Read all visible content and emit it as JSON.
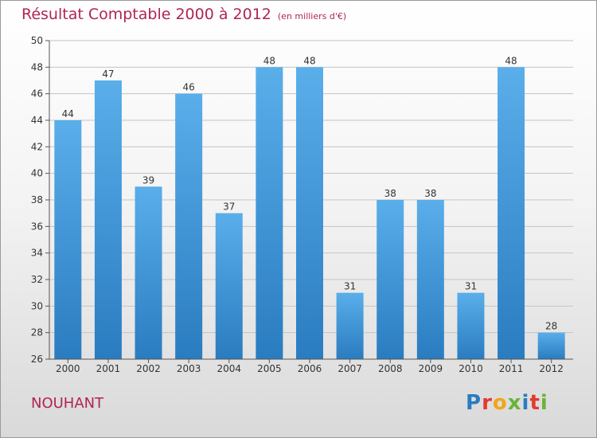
{
  "header": {
    "title": "Résultat Comptable 2000 à 2012",
    "unit": "(en milliers d'€)"
  },
  "footer": {
    "commune": "NOUHANT",
    "logo": "Proxiti"
  },
  "colors": {
    "bar_light": "#5aaeea",
    "bar_dark": "#2a7cc0",
    "title": "#b02457",
    "logo": [
      "#2a7cc0",
      "#e23a2f",
      "#f2a516",
      "#6ab33b",
      "#2a7cc0",
      "#e23a2f",
      "#6ab33b"
    ]
  },
  "chart_data": {
    "type": "bar",
    "title": "Résultat Comptable 2000 à 2012",
    "subtitle": "(en milliers d'€)",
    "categories": [
      "2000",
      "2001",
      "2002",
      "2003",
      "2004",
      "2005",
      "2006",
      "2007",
      "2008",
      "2009",
      "2010",
      "2011",
      "2012"
    ],
    "values": [
      44,
      47,
      39,
      46,
      37,
      48,
      48,
      31,
      38,
      38,
      31,
      48,
      28
    ],
    "ylim": [
      26,
      50
    ],
    "yticks": [
      26,
      28,
      30,
      32,
      34,
      36,
      38,
      40,
      42,
      44,
      46,
      48,
      50
    ],
    "grid": true,
    "legend": "none"
  }
}
